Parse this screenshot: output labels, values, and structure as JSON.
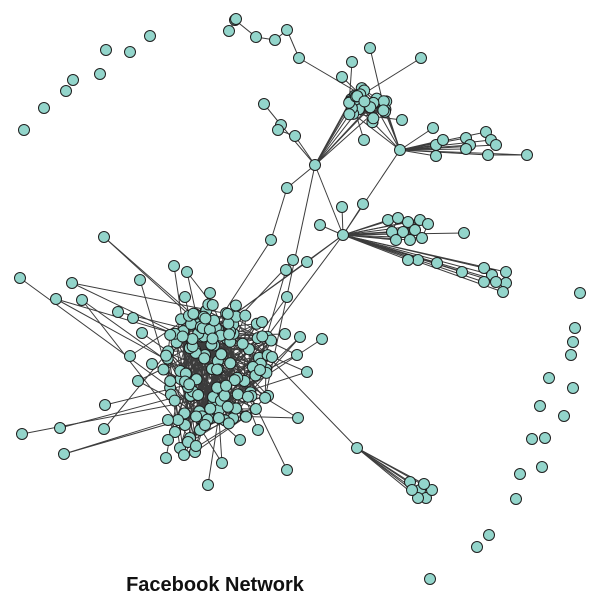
{
  "caption": "Facebook Network",
  "colors": {
    "node_fill": "#93d5cb",
    "node_stroke": "#1f1f1f",
    "edge": "#3c3c3c",
    "background": "#ffffff"
  },
  "graph": {
    "type": "network",
    "directed": false
  }
}
